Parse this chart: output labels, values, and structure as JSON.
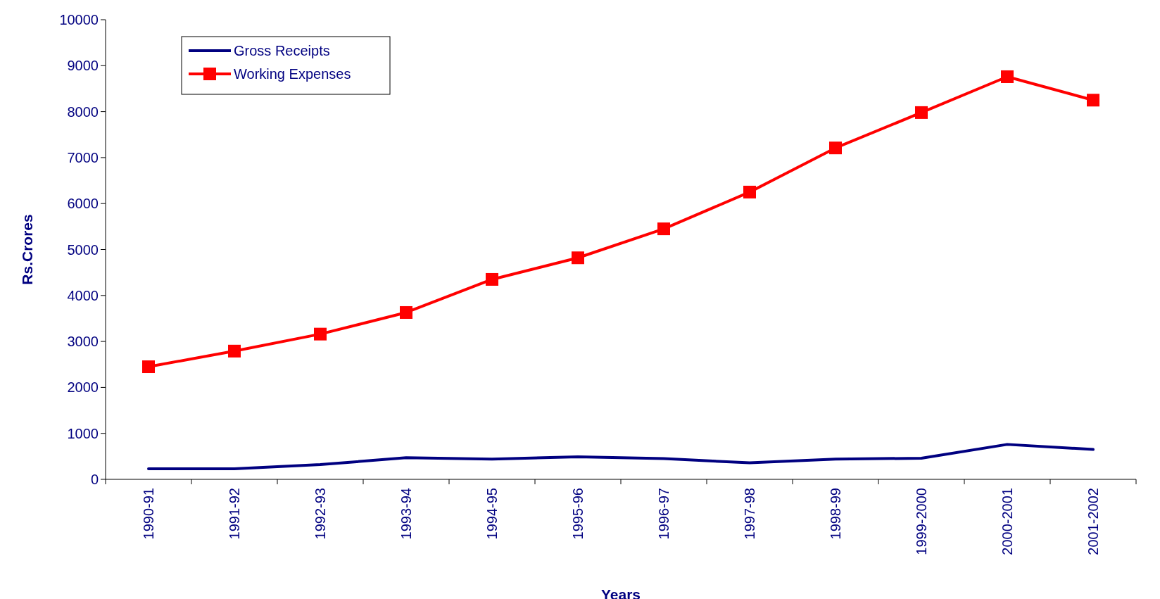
{
  "chart_data": {
    "type": "line",
    "xlabel": "Years",
    "ylabel": "Rs.Crores",
    "categories": [
      "1990-91",
      "1991-92",
      "1992-93",
      "1993-94",
      "1994-95",
      "1995-96",
      "1996-97",
      "1997-98",
      "1998-99",
      "1999-2000",
      "2000-2001",
      "2001-2002"
    ],
    "series": [
      {
        "name": "Gross Receipts",
        "color": "#000080",
        "marker": "none",
        "values": [
          230,
          230,
          320,
          470,
          440,
          490,
          450,
          360,
          440,
          460,
          760,
          650
        ]
      },
      {
        "name": "Working Expenses",
        "color": "#ff0000",
        "marker": "square",
        "values": [
          2450,
          2790,
          3160,
          3630,
          4350,
          4820,
          5450,
          6250,
          7210,
          7980,
          8760,
          8250
        ]
      }
    ],
    "ylim": [
      0,
      10000
    ],
    "yticks": [
      0,
      1000,
      2000,
      3000,
      4000,
      5000,
      6000,
      7000,
      8000,
      9000,
      10000
    ],
    "grid": false,
    "legend": "top left"
  }
}
